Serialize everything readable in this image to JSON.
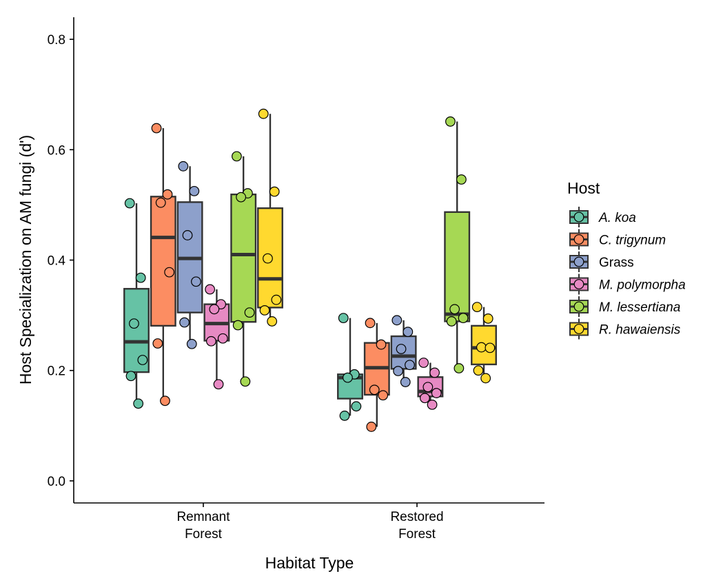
{
  "chart_data": {
    "type": "box",
    "xlabel": "Habitat Type",
    "ylabel": "Host Specialization on AM fungi (d')",
    "ylim": [
      -0.04,
      0.84
    ],
    "yticks": [
      "0.0",
      "0.2",
      "0.4",
      "0.6",
      "0.8"
    ],
    "ytick_values": [
      0.0,
      0.2,
      0.4,
      0.6,
      0.8
    ],
    "grid": false,
    "legend": {
      "title": "Host",
      "placement": "right"
    },
    "categories": [
      {
        "key": "remnant",
        "lines": [
          "Remnant",
          "Forest"
        ]
      },
      {
        "key": "restored",
        "lines": [
          "Restored",
          "Forest"
        ]
      }
    ],
    "series": [
      {
        "name": "A. koa",
        "italic": true,
        "color": "#66c2a5",
        "boxes": [
          {
            "min": 0.14,
            "q1": 0.197,
            "median": 0.252,
            "q3": 0.348,
            "max": 0.503,
            "points": [
              0.503,
              0.368,
              0.285,
              0.219,
              0.19,
              0.14
            ]
          },
          {
            "min": 0.118,
            "q1": 0.149,
            "median": 0.187,
            "q3": 0.193,
            "max": 0.295,
            "points": [
              0.295,
              0.193,
              0.187,
              0.135,
              0.118
            ]
          }
        ]
      },
      {
        "name": "C. trigynum",
        "italic": true,
        "color": "#fc8d62",
        "boxes": [
          {
            "min": 0.145,
            "q1": 0.281,
            "median": 0.441,
            "q3": 0.515,
            "max": 0.639,
            "points": [
              0.639,
              0.519,
              0.504,
              0.378,
              0.249,
              0.145
            ]
          },
          {
            "min": 0.098,
            "q1": 0.156,
            "median": 0.205,
            "q3": 0.25,
            "max": 0.286,
            "points": [
              0.286,
              0.247,
              0.165,
              0.155,
              0.098
            ]
          }
        ]
      },
      {
        "name": "Grass",
        "italic": false,
        "color": "#8da0cb",
        "boxes": [
          {
            "min": 0.248,
            "q1": 0.305,
            "median": 0.403,
            "q3": 0.505,
            "max": 0.57,
            "points": [
              0.57,
              0.525,
              0.445,
              0.361,
              0.287,
              0.248
            ]
          },
          {
            "min": 0.179,
            "q1": 0.203,
            "median": 0.226,
            "q3": 0.262,
            "max": 0.291,
            "points": [
              0.291,
              0.27,
              0.239,
              0.21,
              0.199,
              0.179
            ]
          }
        ]
      },
      {
        "name": "M. polymorpha",
        "italic": true,
        "color": "#e78ac3",
        "boxes": [
          {
            "min": 0.175,
            "q1": 0.254,
            "median": 0.285,
            "q3": 0.32,
            "max": 0.347,
            "points": [
              0.347,
              0.32,
              0.311,
              0.258,
              0.253,
              0.175
            ]
          },
          {
            "min": 0.138,
            "q1": 0.153,
            "median": 0.162,
            "q3": 0.188,
            "max": 0.214,
            "points": [
              0.214,
              0.196,
              0.17,
              0.159,
              0.15,
              0.138
            ]
          }
        ]
      },
      {
        "name": "M. lessertiana",
        "italic": true,
        "color": "#a6d854",
        "boxes": [
          {
            "min": 0.18,
            "q1": 0.288,
            "median": 0.41,
            "q3": 0.519,
            "max": 0.588,
            "points": [
              0.588,
              0.521,
              0.514,
              0.305,
              0.282,
              0.18
            ]
          },
          {
            "min": 0.204,
            "q1": 0.289,
            "median": 0.302,
            "q3": 0.487,
            "max": 0.651,
            "points": [
              0.651,
              0.546,
              0.311,
              0.295,
              0.289,
              0.204
            ]
          }
        ]
      },
      {
        "name": "R. hawaiensis",
        "italic": true,
        "color": "#ffd92f",
        "boxes": [
          {
            "min": 0.289,
            "q1": 0.314,
            "median": 0.366,
            "q3": 0.494,
            "max": 0.665,
            "points": [
              0.665,
              0.524,
              0.403,
              0.328,
              0.309,
              0.289
            ]
          },
          {
            "min": 0.186,
            "q1": 0.211,
            "median": 0.241,
            "q3": 0.281,
            "max": 0.315,
            "points": [
              0.315,
              0.294,
              0.242,
              0.241,
              0.2,
              0.186
            ]
          }
        ]
      }
    ]
  }
}
